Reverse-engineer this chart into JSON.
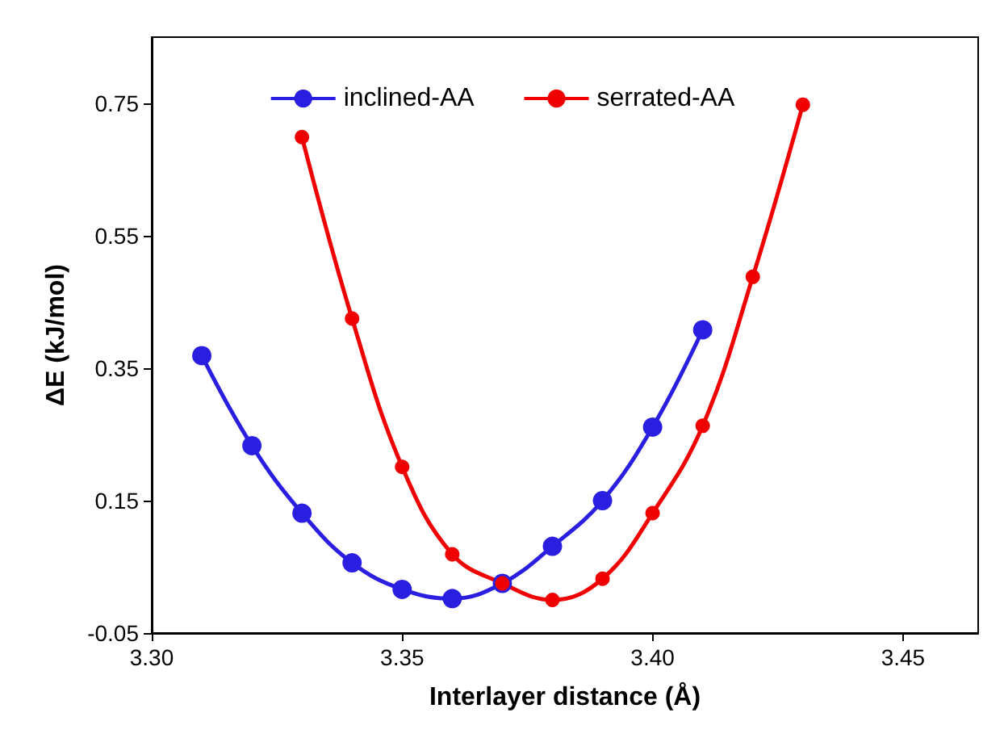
{
  "chart_data": {
    "type": "line",
    "xlabel": "Interlayer distance (Å)",
    "ylabel": "ΔE (kJ/mol)",
    "xlim": [
      3.3,
      3.465
    ],
    "xticks": [
      {
        "value": 3.3,
        "label": "3.30"
      },
      {
        "value": 3.35,
        "label": "3.35"
      },
      {
        "value": 3.4,
        "label": "3.40"
      },
      {
        "value": 3.45,
        "label": "3.45"
      }
    ],
    "ylim": [
      -0.05,
      0.85
    ],
    "yticks": [
      -0.05,
      0.15,
      0.35,
      0.55,
      0.75
    ],
    "series": [
      {
        "name": "inclined-AA",
        "color": "#2a1fe0",
        "x": [
          3.31,
          3.32,
          3.33,
          3.34,
          3.35,
          3.36,
          3.37,
          3.38,
          3.39,
          3.4,
          3.41
        ],
        "values": [
          0.369,
          0.233,
          0.131,
          0.056,
          0.016,
          0.002,
          0.025,
          0.081,
          0.15,
          0.261,
          0.408
        ]
      },
      {
        "name": "serrated-AA",
        "color": "#f00000",
        "x": [
          3.33,
          3.34,
          3.35,
          3.36,
          3.37,
          3.38,
          3.39,
          3.4,
          3.41,
          3.42,
          3.43
        ],
        "values": [
          0.699,
          0.425,
          0.201,
          0.069,
          0.025,
          0.0,
          0.032,
          0.131,
          0.263,
          0.488,
          0.748
        ]
      }
    ],
    "grid": false,
    "legend": "top",
    "marker": "circle",
    "line_style": "solid"
  }
}
